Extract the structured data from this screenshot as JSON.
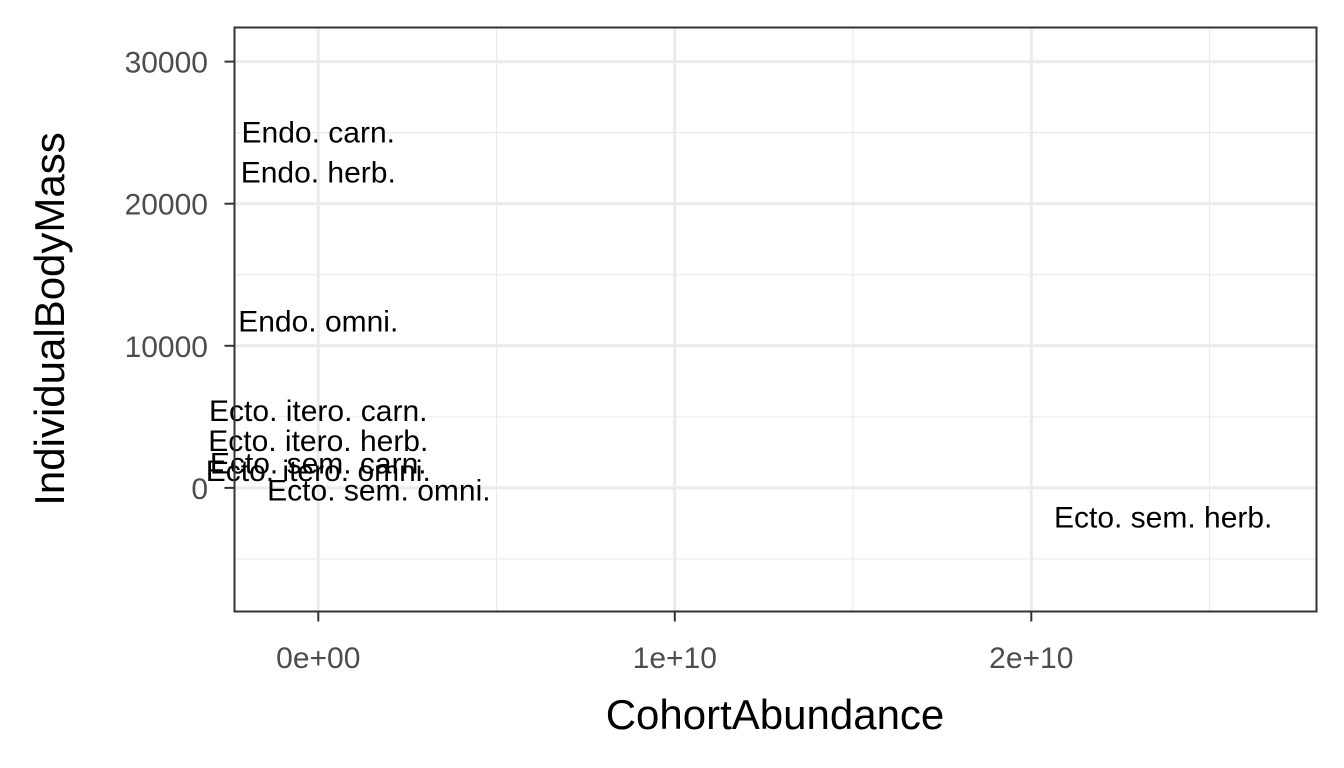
{
  "chart_data": {
    "type": "scatter",
    "geom": "text",
    "xlabel": "CohortAbundance",
    "ylabel": "IndividualBodyMass",
    "xlim": [
      -2350000000,
      28000000000
    ],
    "ylim": [
      -8700,
      32400
    ],
    "x_ticks": [
      0,
      10000000000,
      20000000000
    ],
    "x_tick_labels": [
      "0e+00",
      "1e+10",
      "2e+10"
    ],
    "y_ticks": [
      0,
      10000,
      20000,
      30000
    ],
    "y_tick_labels": [
      "0",
      "10000",
      "20000",
      "30000"
    ],
    "grid": true,
    "points": [
      {
        "label": "Endo. carn.",
        "x": 0,
        "y": 25000
      },
      {
        "label": "Endo. herb.",
        "x": 0,
        "y": 22200
      },
      {
        "label": "Endo. omni.",
        "x": 0,
        "y": 11700
      },
      {
        "label": "Ecto. itero. carn.",
        "x": 0,
        "y": 5400
      },
      {
        "label": "Ecto. itero. herb.",
        "x": 0,
        "y": 3300
      },
      {
        "label": "Ecto. sem. carn.",
        "x": 0,
        "y": 1700
      },
      {
        "label": "Ecto. itero. omni.",
        "x": 0,
        "y": 1200
      },
      {
        "label": "Ecto. sem. omni.",
        "x": 1700000000,
        "y": -200
      },
      {
        "label": "Ecto. sem. herb.",
        "x": 23700000000,
        "y": -2100
      }
    ]
  }
}
